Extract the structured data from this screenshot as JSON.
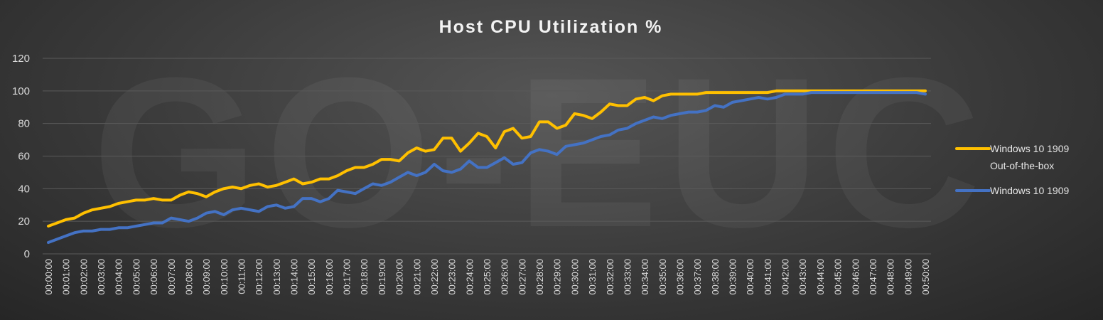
{
  "watermark_text": "GO-EUC",
  "chart_data": {
    "type": "line",
    "title": "Host CPU Utilization %",
    "xlabel": "",
    "ylabel": "",
    "ylim": [
      0,
      120
    ],
    "yticks": [
      0,
      20,
      40,
      60,
      80,
      100,
      120
    ],
    "grid": true,
    "legend_position": "right",
    "x_tick_labels": [
      "00:00:00",
      "00:01:00",
      "00:02:00",
      "00:03:00",
      "00:04:00",
      "00:05:00",
      "00:06:00",
      "00:07:00",
      "00:08:00",
      "00:09:00",
      "00:10:00",
      "00:11:00",
      "00:12:00",
      "00:13:00",
      "00:14:00",
      "00:15:00",
      "00:16:00",
      "00:17:00",
      "00:18:00",
      "00:19:00",
      "00:20:00",
      "00:21:00",
      "00:22:00",
      "00:23:00",
      "00:24:00",
      "00:25:00",
      "00:26:00",
      "00:27:00",
      "00:28:00",
      "00:29:00",
      "00:30:00",
      "00:31:00",
      "00:32:00",
      "00:33:00",
      "00:34:00",
      "00:35:00",
      "00:36:00",
      "00:37:00",
      "00:38:00",
      "00:39:00",
      "00:40:00",
      "00:41:00",
      "00:42:00",
      "00:43:00",
      "00:44:00",
      "00:45:00",
      "00:46:00",
      "00:47:00",
      "00:48:00",
      "00:49:00",
      "00:50:00"
    ],
    "series": [
      {
        "name": "Windows 10 1909 Out-of-the-box",
        "legend_lines": [
          "Windows 10 1909",
          "Out-of-the-box"
        ],
        "color": "#FFC000",
        "values": [
          17,
          19,
          21,
          22,
          25,
          27,
          28,
          29,
          31,
          32,
          33,
          33,
          34,
          33,
          33,
          36,
          38,
          37,
          35,
          38,
          40,
          41,
          40,
          42,
          43,
          41,
          42,
          44,
          46,
          43,
          44,
          46,
          46,
          48,
          51,
          53,
          53,
          55,
          58,
          58,
          57,
          62,
          65,
          63,
          64,
          71,
          71,
          63,
          68,
          74,
          72,
          65,
          75,
          77,
          71,
          72,
          81,
          81,
          77,
          79,
          86,
          85,
          83,
          87,
          92,
          91,
          91,
          95,
          96,
          94,
          97,
          98,
          98,
          98,
          98,
          99,
          99,
          99,
          99,
          99,
          99,
          99,
          99,
          100,
          100,
          100,
          100,
          100,
          100,
          100,
          100,
          100,
          100,
          100,
          100,
          100,
          100,
          100,
          100,
          100,
          100
        ]
      },
      {
        "name": "Windows 10 1909",
        "legend_lines": [
          "Windows 10 1909"
        ],
        "color": "#4472C4",
        "values": [
          7,
          9,
          11,
          13,
          14,
          14,
          15,
          15,
          16,
          16,
          17,
          18,
          19,
          19,
          22,
          21,
          20,
          22,
          25,
          26,
          24,
          27,
          28,
          27,
          26,
          29,
          30,
          28,
          29,
          34,
          34,
          32,
          34,
          39,
          38,
          37,
          40,
          43,
          42,
          44,
          47,
          50,
          48,
          50,
          55,
          51,
          50,
          52,
          57,
          53,
          53,
          56,
          59,
          55,
          56,
          62,
          64,
          63,
          61,
          66,
          67,
          68,
          70,
          72,
          73,
          76,
          77,
          80,
          82,
          84,
          83,
          85,
          86,
          87,
          87,
          88,
          91,
          90,
          93,
          94,
          95,
          96,
          95,
          96,
          98,
          98,
          98,
          99,
          99,
          99,
          99,
          99,
          99,
          99,
          99,
          99,
          99,
          99,
          99,
          99,
          98
        ]
      }
    ]
  }
}
